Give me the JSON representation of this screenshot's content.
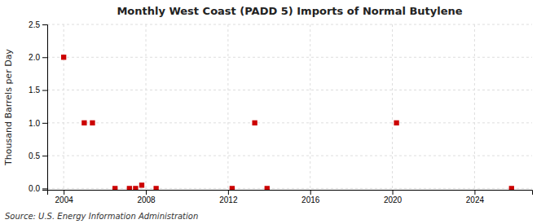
{
  "chart_data": {
    "type": "scatter",
    "title": "Monthly West Coast (PADD 5) Imports of Normal Butylene",
    "ylabel": "Thousand Barrels per Day",
    "annotations": [
      "Source: U.S. Energy Information Administration"
    ],
    "x": [
      2004.0,
      2005.0,
      2005.4,
      2006.5,
      2007.2,
      2007.5,
      2007.8,
      2008.5,
      2012.2,
      2013.3,
      2013.9,
      2020.2,
      2025.8
    ],
    "values": [
      2.0,
      1.0,
      1.0,
      0.0,
      0.0,
      0.0,
      0.05,
      0.0,
      0.0,
      1.0,
      0.0,
      1.0,
      0.0
    ],
    "color": "#cc0000",
    "marker": "square",
    "xlim": [
      2003.2,
      2026.8
    ],
    "ylim": [
      -0.02,
      2.5
    ],
    "xticks": [
      2004,
      2008,
      2012,
      2016,
      2020,
      2024
    ],
    "yticks": [
      {
        "value": 0.0,
        "label": "0.0"
      },
      0.5,
      {
        "value": 1.0,
        "label": "1.0"
      },
      1.5,
      {
        "value": 2.0,
        "label": "2.0"
      },
      2.5
    ],
    "grid": true
  }
}
